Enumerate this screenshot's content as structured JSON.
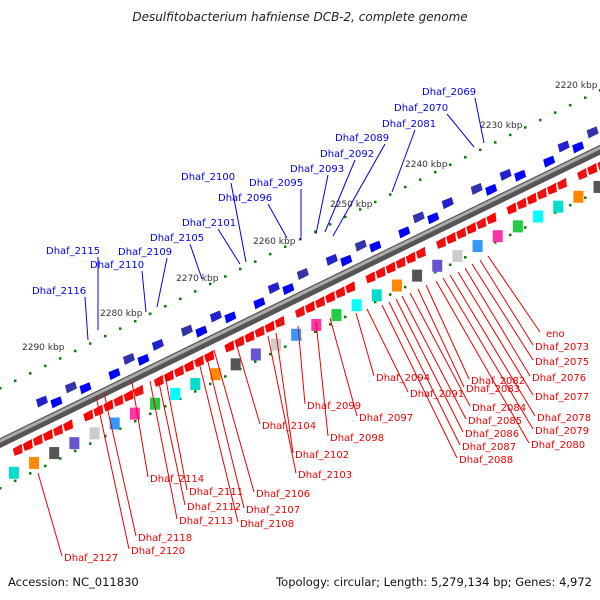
{
  "title": "Desulfitobacterium hafniense DCB-2, complete genome",
  "footer": {
    "accession": "Accession: NC_011830",
    "summary": "Topology: circular; Length: 5,279,134 bp; Genes: 4,972"
  },
  "colors": {
    "forward_label": "#0000ee",
    "reverse_label": "#ee0000",
    "backbone": "#888888",
    "tick": "#008000",
    "cds_forward": "#0000ff",
    "cds_reverse": "#ff0000"
  },
  "scale_labels": [
    "2220 kbp",
    "2230 kbp",
    "2240 kbp",
    "2250 kbp",
    "2260 kbp",
    "2270 kbp",
    "2280 kbp",
    "2290 kbp"
  ],
  "forward_labels": [
    "Dhaf_2069",
    "Dhaf_2070",
    "Dhaf_2081",
    "Dhaf_2089",
    "Dhaf_2092",
    "Dhaf_2093",
    "Dhaf_2095",
    "Dhaf_2096",
    "Dhaf_2100",
    "Dhaf_2101",
    "Dhaf_2105",
    "Dhaf_2109",
    "Dhaf_2110",
    "Dhaf_2115",
    "Dhaf_2116"
  ],
  "reverse_labels": [
    "eno",
    "Dhaf_2073",
    "Dhaf_2075",
    "Dhaf_2076",
    "Dhaf_2077",
    "Dhaf_2078",
    "Dhaf_2079",
    "Dhaf_2080",
    "Dhaf_2082",
    "Dhaf_2083",
    "Dhaf_2084",
    "Dhaf_2085",
    "Dhaf_2086",
    "Dhaf_2087",
    "Dhaf_2088",
    "Dhaf_2091",
    "Dhaf_2094",
    "Dhaf_2097",
    "Dhaf_2098",
    "Dhaf_2099",
    "Dhaf_2102",
    "Dhaf_2103",
    "Dhaf_2104",
    "Dhaf_2106",
    "Dhaf_2107",
    "Dhaf_2108",
    "Dhaf_2111",
    "Dhaf_2112",
    "Dhaf_2113",
    "Dhaf_2114",
    "Dhaf_2118",
    "Dhaf_2120",
    "Dhaf_2127"
  ]
}
